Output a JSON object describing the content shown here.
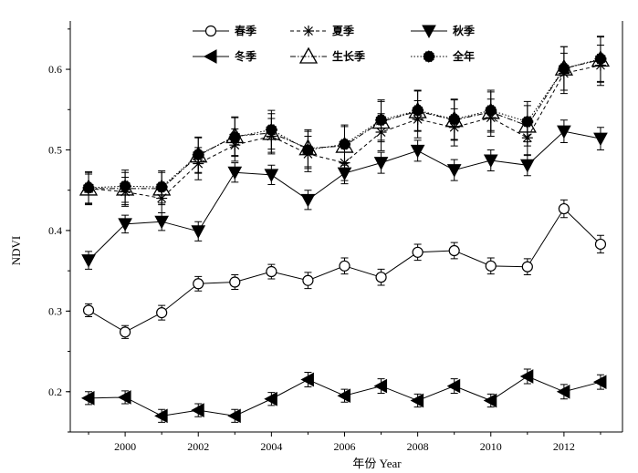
{
  "chart_data": {
    "type": "line",
    "xlabel": "年份 Year",
    "ylabel": "NDVI",
    "xlim": [
      1998.5,
      2013.6
    ],
    "ylim": [
      0.15,
      0.66
    ],
    "x_ticks": [
      2000,
      2002,
      2004,
      2006,
      2008,
      2010,
      2012
    ],
    "y_ticks": [
      0.2,
      0.3,
      0.4,
      0.5,
      0.6
    ],
    "x_tick_labels": [
      "2000",
      "2002",
      "2004",
      "2006",
      "2008",
      "2010",
      "2012"
    ],
    "y_tick_labels": [
      "0.2",
      "0.3",
      "0.4",
      "0.5",
      "0.6"
    ],
    "grid": false,
    "legend_position": "top",
    "x": [
      1999,
      2000,
      2001,
      2002,
      2003,
      2004,
      2005,
      2006,
      2007,
      2008,
      2009,
      2010,
      2011,
      2012,
      2013
    ],
    "series": [
      {
        "name": "春季",
        "marker": "open-circle",
        "line": "solid",
        "values": [
          0.301,
          0.274,
          0.298,
          0.334,
          0.336,
          0.349,
          0.338,
          0.356,
          0.342,
          0.373,
          0.375,
          0.356,
          0.355,
          0.427,
          0.383
        ],
        "errors": [
          0.008,
          0.008,
          0.009,
          0.009,
          0.009,
          0.009,
          0.01,
          0.01,
          0.01,
          0.01,
          0.01,
          0.01,
          0.01,
          0.011,
          0.011
        ]
      },
      {
        "name": "夏季",
        "marker": "asterisk",
        "line": "dashed",
        "values": [
          0.452,
          0.448,
          0.44,
          0.483,
          0.506,
          0.517,
          0.495,
          0.484,
          0.522,
          0.538,
          0.528,
          0.54,
          0.515,
          0.595,
          0.605
        ],
        "errors": [
          0.018,
          0.018,
          0.018,
          0.02,
          0.02,
          0.022,
          0.022,
          0.022,
          0.023,
          0.023,
          0.023,
          0.023,
          0.022,
          0.025,
          0.025
        ]
      },
      {
        "name": "秋季",
        "marker": "down-triangle",
        "line": "solid",
        "values": [
          0.363,
          0.408,
          0.411,
          0.399,
          0.472,
          0.469,
          0.438,
          0.471,
          0.484,
          0.499,
          0.475,
          0.487,
          0.481,
          0.523,
          0.514
        ],
        "errors": [
          0.011,
          0.011,
          0.011,
          0.012,
          0.012,
          0.012,
          0.012,
          0.013,
          0.013,
          0.013,
          0.013,
          0.013,
          0.013,
          0.014,
          0.014
        ]
      },
      {
        "name": "冬季",
        "marker": "left-triangle",
        "line": "solid",
        "values": [
          0.192,
          0.193,
          0.17,
          0.177,
          0.17,
          0.191,
          0.215,
          0.195,
          0.207,
          0.189,
          0.207,
          0.189,
          0.219,
          0.2,
          0.212
        ],
        "errors": [
          0.008,
          0.008,
          0.008,
          0.008,
          0.008,
          0.008,
          0.009,
          0.008,
          0.009,
          0.008,
          0.009,
          0.008,
          0.009,
          0.009,
          0.009
        ]
      },
      {
        "name": "生长季",
        "marker": "open-triangle",
        "line": "dashdot",
        "values": [
          0.452,
          0.452,
          0.452,
          0.493,
          0.517,
          0.521,
          0.502,
          0.505,
          0.535,
          0.548,
          0.537,
          0.547,
          0.53,
          0.601,
          0.612
        ],
        "errors": [
          0.02,
          0.02,
          0.02,
          0.022,
          0.024,
          0.024,
          0.023,
          0.024,
          0.025,
          0.025,
          0.025,
          0.025,
          0.025,
          0.027,
          0.028
        ]
      },
      {
        "name": "全年",
        "marker": "filled-circle-dotted",
        "line": "dotted",
        "values": [
          0.453,
          0.455,
          0.454,
          0.494,
          0.516,
          0.525,
          0.5,
          0.507,
          0.537,
          0.549,
          0.538,
          0.549,
          0.535,
          0.601,
          0.613
        ],
        "errors": [
          0.02,
          0.02,
          0.02,
          0.022,
          0.024,
          0.024,
          0.023,
          0.024,
          0.025,
          0.025,
          0.025,
          0.025,
          0.025,
          0.027,
          0.028
        ]
      }
    ]
  }
}
